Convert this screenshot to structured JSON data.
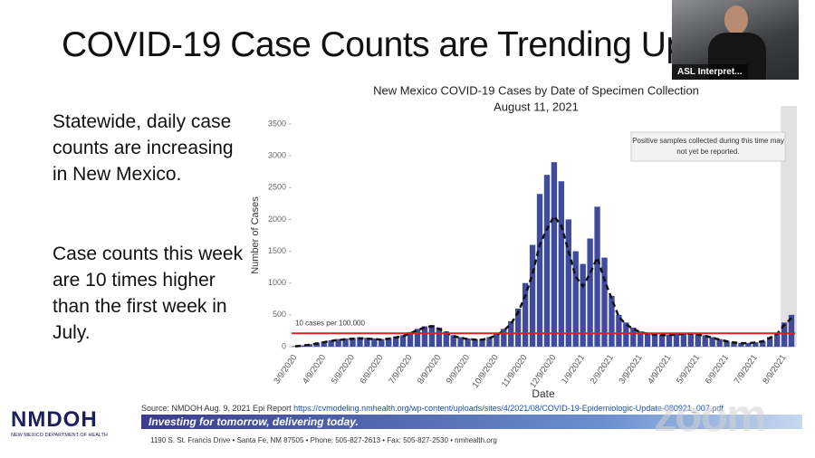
{
  "slide_title": "COVID-19 Case Counts are Trending Up",
  "paragraphs": [
    "Statewide, daily case counts are increasing in New Mexico.",
    "Case counts this week are 10 times higher than the first week in July."
  ],
  "chart_data": {
    "type": "bar",
    "title": "New Mexico COVID-19 Cases by Date of Specimen Collection",
    "subtitle": "August 11, 2021",
    "xlabel": "Date",
    "ylabel": "Number of Cases",
    "categories": [
      "3/9/2020",
      null,
      null,
      null,
      "4/9/2020",
      null,
      null,
      null,
      "5/9/2020",
      null,
      null,
      null,
      "6/9/2020",
      null,
      null,
      null,
      "7/9/2020",
      null,
      null,
      null,
      "8/9/2020",
      null,
      null,
      null,
      "9/9/2020",
      null,
      null,
      null,
      "10/9/2020",
      null,
      null,
      null,
      "11/9/2020",
      null,
      null,
      null,
      "12/9/2020",
      null,
      null,
      null,
      "1/9/2021",
      null,
      null,
      null,
      "2/9/2021",
      null,
      null,
      null,
      "3/9/2021",
      null,
      null,
      null,
      "4/9/2021",
      null,
      null,
      null,
      "5/9/2021",
      null,
      null,
      null,
      "6/9/2021",
      null,
      null,
      null,
      "7/9/2021",
      null,
      null,
      null,
      "8/9/2021",
      null
    ],
    "series": [
      {
        "type": "bar",
        "color": "#3f4c9c",
        "values": [
          10,
          20,
          40,
          60,
          80,
          100,
          120,
          130,
          140,
          150,
          140,
          130,
          120,
          140,
          160,
          180,
          230,
          280,
          320,
          340,
          300,
          240,
          180,
          150,
          130,
          120,
          120,
          150,
          200,
          280,
          400,
          600,
          1000,
          1600,
          2400,
          2700,
          2900,
          2600,
          2000,
          1500,
          1300,
          1700,
          2200,
          1400,
          800,
          500,
          380,
          300,
          240,
          220,
          200,
          190,
          190,
          200,
          210,
          220,
          200,
          180,
          150,
          120,
          90,
          70,
          60,
          60,
          70,
          90,
          150,
          220,
          380,
          500
        ]
      },
      {
        "type": "line",
        "color": "#111111",
        "dashed": true,
        "values": [
          5,
          15,
          30,
          50,
          70,
          90,
          105,
          115,
          125,
          130,
          125,
          120,
          110,
          125,
          145,
          165,
          210,
          260,
          300,
          320,
          280,
          220,
          165,
          140,
          120,
          110,
          110,
          135,
          180,
          250,
          360,
          540,
          800,
          1150,
          1600,
          1850,
          2050,
          1900,
          1500,
          1100,
          950,
          1150,
          1400,
          1050,
          750,
          470,
          350,
          280,
          225,
          205,
          190,
          180,
          180,
          190,
          200,
          205,
          190,
          170,
          140,
          110,
          85,
          65,
          55,
          55,
          65,
          85,
          140,
          200,
          340,
          450
        ]
      }
    ],
    "reference_line": {
      "value": 210,
      "label": "10 cases per 100,000",
      "color": "#e02020"
    },
    "shade_note": "Positive samples collected during this time may not yet be reported.",
    "ylim": [
      0,
      3500
    ],
    "yticks": [
      0,
      500,
      1000,
      1500,
      2000,
      2500,
      3000,
      3500
    ],
    "grid": false
  },
  "source": {
    "text": "Source: NMDOH Aug. 9, 2021 Epi Report",
    "url": "https://cvmodeling.nmhealth.org/wp-content/uploads/sites/4/2021/08/COVID-19-Epidemiologic-Update-080921_007.pdf"
  },
  "logo": {
    "name": "NMDOH",
    "subtitle": "NEW MEXICO DEPARTMENT OF HEALTH"
  },
  "banner": "Investing for tomorrow, delivering today.",
  "address": "1190 S. St. Francis Drive • Santa Fe, NM 87505 • Phone: 505-827-2613 • Fax: 505-827-2530 • nmhealth.org",
  "watermark": "zoom",
  "interpreter_label": "ASL Interpret..."
}
